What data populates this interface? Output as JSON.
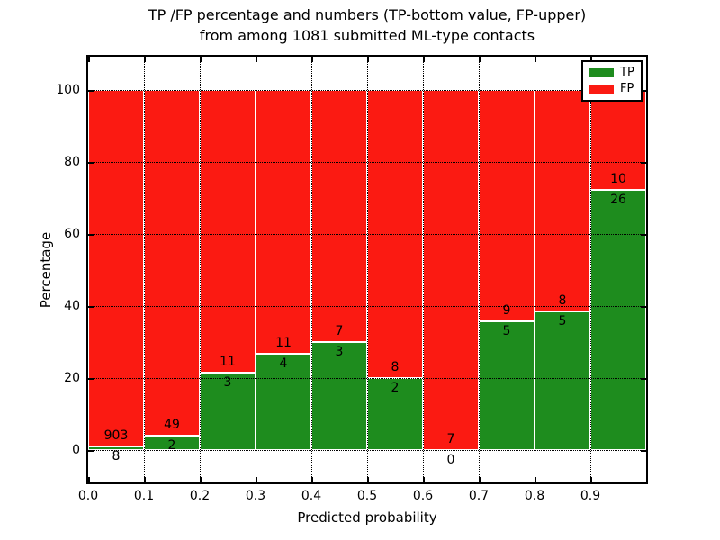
{
  "figure": {
    "title_line1": "TP /FP percentage and numbers (TP-bottom value, FP-upper)",
    "title_line2": "from among 1081 submitted ML-type contacts"
  },
  "chart_data": {
    "type": "bar",
    "stacked": true,
    "normalized": "percent (each bin sums to 100)",
    "title": "TP /FP percentage and numbers (TP-bottom value, FP-upper) from among 1081 submitted ML-type contacts",
    "xlabel": "Predicted probability",
    "ylabel": "Percentage",
    "total_contacts": 1081,
    "bins": [
      "0.0-0.1",
      "0.1-0.2",
      "0.2-0.3",
      "0.3-0.4",
      "0.4-0.5",
      "0.5-0.6",
      "0.6-0.7",
      "0.7-0.8",
      "0.8-0.9",
      "0.9-1.0"
    ],
    "x_tick_labels": [
      "0.0",
      "0.1",
      "0.2",
      "0.3",
      "0.4",
      "0.5",
      "0.6",
      "0.7",
      "0.8",
      "0.9"
    ],
    "y_ticks": [
      0,
      20,
      40,
      60,
      80,
      100
    ],
    "xlim": [
      0.0,
      1.0
    ],
    "ylim": [
      -9.5,
      109.75
    ],
    "grid": "dotted",
    "bar_edge_color": "#ffffff",
    "series": [
      {
        "name": "TP",
        "color": "#1e8c1e",
        "counts": [
          8,
          2,
          3,
          4,
          3,
          2,
          0,
          5,
          5,
          26
        ],
        "percent": [
          0.88,
          3.92,
          21.43,
          26.67,
          30.0,
          20.0,
          0.0,
          35.71,
          38.46,
          72.22
        ]
      },
      {
        "name": "FP",
        "color": "#fb1a12",
        "counts": [
          903,
          49,
          11,
          11,
          7,
          8,
          7,
          9,
          8,
          10
        ],
        "percent": [
          99.12,
          96.08,
          78.57,
          73.33,
          70.0,
          80.0,
          100.0,
          64.29,
          61.54,
          27.78
        ]
      }
    ],
    "legend": {
      "position": "upper right",
      "entries": [
        {
          "label": "TP",
          "color": "#1e8c1e"
        },
        {
          "label": "FP",
          "color": "#fb1a12"
        }
      ]
    }
  }
}
